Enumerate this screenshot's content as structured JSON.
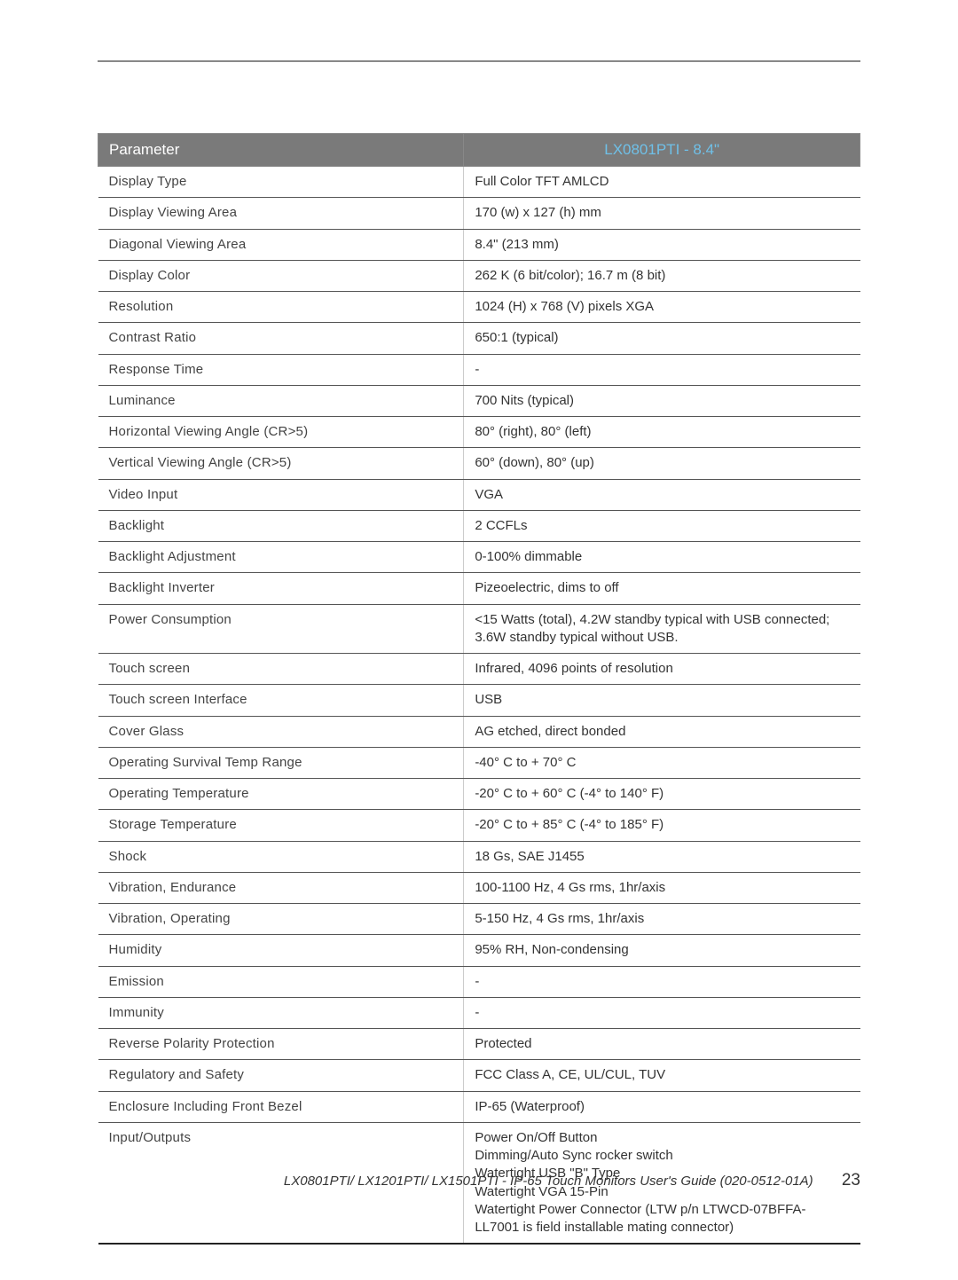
{
  "header": {
    "param_label": "Parameter",
    "model_label": "LX0801PTI - 8.4\""
  },
  "rows": [
    {
      "param": "Display Type",
      "value": "Full Color TFT AMLCD"
    },
    {
      "param": "Display Viewing Area",
      "value": "170 (w) x 127 (h) mm"
    },
    {
      "param": "Diagonal Viewing Area",
      "value": "8.4\" (213 mm)"
    },
    {
      "param": "Display Color",
      "value": "262 K (6 bit/color); 16.7 m (8 bit)"
    },
    {
      "param": "Resolution",
      "value": "1024 (H) x 768 (V) pixels XGA"
    },
    {
      "param": "Contrast Ratio",
      "value": "650:1 (typical)"
    },
    {
      "param": "Response Time",
      "value": "-"
    },
    {
      "param": "Luminance",
      "value": "700 Nits (typical)"
    },
    {
      "param": "Horizontal Viewing Angle (CR>5)",
      "value": "80° (right), 80° (left)"
    },
    {
      "param": "Vertical Viewing Angle (CR>5)",
      "value": "60° (down), 80° (up)"
    },
    {
      "param": "Video Input",
      "value": "VGA"
    },
    {
      "param": "Backlight",
      "value": "2 CCFLs"
    },
    {
      "param": "Backlight Adjustment",
      "value": "0-100% dimmable"
    },
    {
      "param": "Backlight Inverter",
      "value": "Pizeoelectric, dims to off"
    },
    {
      "param": "Power Consumption",
      "value": "<15 Watts (total), 4.2W standby typical with USB connected; 3.6W standby typical without USB."
    },
    {
      "param": "Touch screen",
      "value": "Infrared, 4096 points of resolution"
    },
    {
      "param": "Touch screen Interface",
      "value": "USB"
    },
    {
      "param": "Cover Glass",
      "value": "AG etched, direct bonded"
    },
    {
      "param": "Operating Survival Temp Range",
      "value": "-40° C to + 70° C"
    },
    {
      "param": "Operating Temperature",
      "value": "-20° C to + 60° C (-4° to 140° F)"
    },
    {
      "param": "Storage Temperature",
      "value": "-20° C to + 85° C (-4° to 185° F)"
    },
    {
      "param": "Shock",
      "value": "18 Gs, SAE J1455"
    },
    {
      "param": "Vibration, Endurance",
      "value": "100-1100 Hz, 4 Gs rms, 1hr/axis"
    },
    {
      "param": "Vibration, Operating",
      "value": "5-150 Hz, 4 Gs rms, 1hr/axis"
    },
    {
      "param": "Humidity",
      "value": "95% RH, Non-condensing"
    },
    {
      "param": "Emission",
      "value": "-"
    },
    {
      "param": "Immunity",
      "value": "-"
    },
    {
      "param": "Reverse Polarity Protection",
      "value": "Protected"
    },
    {
      "param": "Regulatory and Safety",
      "value": "FCC Class A, CE, UL/CUL, TUV"
    },
    {
      "param": "Enclosure Including Front Bezel",
      "value": "IP-65 (Waterproof)"
    },
    {
      "param": "Input/Outputs",
      "value": "Power On/Off Button\nDimming/Auto Sync rocker switch\nWatertight USB \"B\" Type\nWatertight VGA 15-Pin\nWatertight Power Connector (LTW p/n LTWCD-07BFFA-LL7001 is field installable mating connector)"
    }
  ],
  "footer": {
    "doc_title": "LX0801PTI/ LX1201PTI/ LX1501PTI - IP-65 Touch Monitors User's Guide (020-0512-01A)",
    "page_number": "23"
  },
  "style": {
    "page_bg": "#ffffff",
    "header_bg": "#7a7a7a",
    "header_fg": "#ffffff",
    "model_fg": "#6fc0e8",
    "row_border": "#555555",
    "body_font_size_pt": 11,
    "header_font_size_pt": 13
  }
}
